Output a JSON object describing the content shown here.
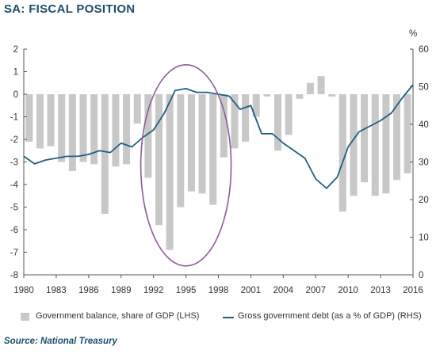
{
  "title": "SA: FISCAL POSITION",
  "source": "Source: National Treasury",
  "right_axis_unit": "%",
  "legend": {
    "bar_label": "Government balance, share of GDP (LHS)",
    "line_label": "Gross government debt (as a % of GDP) (RHS)"
  },
  "colors": {
    "bars": "#c8c8c8",
    "line": "#1f5f7f",
    "ellipse": "#8e5a9c",
    "title": "#1d4d6b"
  },
  "chart_data": {
    "type": "bar+line",
    "title": "SA: FISCAL POSITION",
    "x_ticks": [
      "1980",
      "1983",
      "1986",
      "1989",
      "1992",
      "1995",
      "1998",
      "2001",
      "2004",
      "2007",
      "2010",
      "2013",
      "2016"
    ],
    "left_axis": {
      "range": [
        -8,
        2
      ],
      "ticks": [
        2,
        1,
        0,
        -1,
        -2,
        -3,
        -4,
        -5,
        -6,
        -7,
        -8
      ]
    },
    "right_axis": {
      "range": [
        0,
        60
      ],
      "ticks": [
        60,
        50,
        40,
        30,
        20,
        10,
        0
      ],
      "unit": "%"
    },
    "bars": {
      "name": "Government balance, share of GDP (LHS)",
      "x": [
        1980.5,
        1981.5,
        1982.5,
        1983.5,
        1984.5,
        1985.5,
        1986.5,
        1987.5,
        1988.5,
        1989.5,
        1990.5,
        1991.5,
        1992.5,
        1993.5,
        1994.5,
        1995.5,
        1996.5,
        1997.5,
        1998.5,
        1999.5,
        2000.5,
        2001.5,
        2002.5,
        2003.5,
        2004.5,
        2005.5,
        2006.5,
        2007.5,
        2008.5,
        2009.5,
        2010.5,
        2011.5,
        2012.5,
        2013.5,
        2014.5,
        2015.5
      ],
      "values": [
        -2.1,
        -2.4,
        -2.3,
        -3.0,
        -3.4,
        -3.0,
        -3.1,
        -5.3,
        -3.2,
        -3.1,
        -1.3,
        -3.7,
        -5.8,
        -6.9,
        -5.0,
        -4.3,
        -4.4,
        -4.9,
        -2.8,
        -2.4,
        -2.1,
        -1.0,
        -0.1,
        -2.5,
        -1.8,
        -0.2,
        0.5,
        0.8,
        -0.1,
        -5.2,
        -4.5,
        -3.9,
        -4.5,
        -4.4,
        -3.8,
        -3.5
      ]
    },
    "line": {
      "name": "Gross government debt (as a % of GDP) (RHS)",
      "x": [
        1980,
        1981,
        1982,
        1983,
        1984,
        1985,
        1986,
        1987,
        1988,
        1989,
        1990,
        1991,
        1992,
        1993,
        1994,
        1995,
        1996,
        1997,
        1998,
        1999,
        2000,
        2001,
        2002,
        2003,
        2004,
        2005,
        2006,
        2007,
        2008,
        2009,
        2010,
        2011,
        2012,
        2013,
        2014,
        2015,
        2016
      ],
      "values": [
        31.5,
        29.5,
        30.5,
        31.0,
        31.5,
        31.5,
        32.0,
        33.0,
        32.5,
        35.0,
        34.0,
        36.5,
        38.5,
        43.0,
        49.0,
        49.5,
        48.5,
        48.5,
        48.0,
        47.5,
        44.0,
        45.0,
        37.5,
        37.5,
        35.0,
        33.0,
        31.0,
        25.5,
        23.0,
        26.0,
        34.0,
        38.0,
        39.5,
        41.0,
        43.0,
        47.0,
        50.5
      ]
    },
    "annotation": {
      "shape": "ellipse",
      "center_year": 1995,
      "center_value_lhs": -3.15
    },
    "grid": false
  }
}
